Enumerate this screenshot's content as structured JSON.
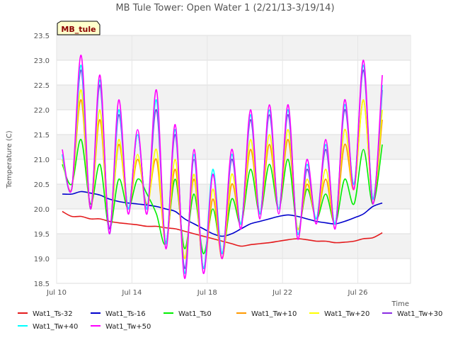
{
  "chart_data": {
    "type": "line",
    "title": "MB Tule Tower: Open Water 1 (2/21/13-3/19/14)",
    "xlabel": "Time",
    "ylabel": "Temperature (C)",
    "site_label": "MB_tule",
    "ylim": [
      18.5,
      23.5
    ],
    "xlim": [
      10.0,
      28.8
    ],
    "y_ticks": [
      "18.5",
      "19.0",
      "19.5",
      "20.0",
      "20.5",
      "21.0",
      "21.5",
      "22.0",
      "22.5",
      "23.0",
      "23.5"
    ],
    "x_ticks": [
      {
        "value": 10,
        "label": "Jul 10"
      },
      {
        "value": 14,
        "label": "Jul 14"
      },
      {
        "value": 18,
        "label": "Jul 18"
      },
      {
        "value": 22,
        "label": "Jul 22"
      },
      {
        "value": 26,
        "label": "Jul 26"
      }
    ],
    "grid": true,
    "legend_position": "bottom",
    "x": [
      10.3,
      10.8,
      11.3,
      11.8,
      12.3,
      12.8,
      13.3,
      13.8,
      14.3,
      14.8,
      15.3,
      15.8,
      16.3,
      16.8,
      17.3,
      17.8,
      18.3,
      18.8,
      19.3,
      19.8,
      20.3,
      20.8,
      21.3,
      21.8,
      22.3,
      22.8,
      23.3,
      23.8,
      24.3,
      24.8,
      25.3,
      25.8,
      26.3,
      26.8,
      27.3
    ],
    "series": [
      {
        "name": "Wat1_Ts-32",
        "color": "#e41a1c",
        "values": [
          19.95,
          19.85,
          19.85,
          19.8,
          19.8,
          19.75,
          19.72,
          19.7,
          19.68,
          19.65,
          19.65,
          19.62,
          19.6,
          19.55,
          19.5,
          19.45,
          19.4,
          19.35,
          19.3,
          19.25,
          19.28,
          19.3,
          19.32,
          19.35,
          19.38,
          19.4,
          19.38,
          19.35,
          19.35,
          19.32,
          19.33,
          19.35,
          19.4,
          19.42,
          19.52
        ]
      },
      {
        "name": "Wat1_Ts-16",
        "color": "#0000cc",
        "values": [
          20.3,
          20.3,
          20.35,
          20.32,
          20.28,
          20.2,
          20.15,
          20.12,
          20.1,
          20.08,
          20.05,
          20.0,
          19.95,
          19.8,
          19.7,
          19.6,
          19.5,
          19.45,
          19.5,
          19.6,
          19.7,
          19.75,
          19.8,
          19.85,
          19.88,
          19.85,
          19.8,
          19.75,
          19.72,
          19.7,
          19.75,
          19.82,
          19.9,
          20.05,
          20.12
        ]
      },
      {
        "name": "Wat1_Ts0",
        "color": "#00ee00",
        "values": [
          20.9,
          20.5,
          21.4,
          20.1,
          20.9,
          19.6,
          20.6,
          20.0,
          20.6,
          20.3,
          19.9,
          19.3,
          20.6,
          19.2,
          20.3,
          19.1,
          20.0,
          19.1,
          20.2,
          19.7,
          20.8,
          19.9,
          20.9,
          20.0,
          21.0,
          19.6,
          20.4,
          19.8,
          20.3,
          19.7,
          20.6,
          20.1,
          21.2,
          20.1,
          21.3
        ]
      },
      {
        "name": "Wat1_Tw+10",
        "color": "#ff9900",
        "values": [
          21.0,
          20.4,
          22.2,
          20.0,
          21.8,
          19.6,
          21.3,
          20.0,
          21.0,
          20.1,
          21.0,
          19.3,
          20.8,
          19.0,
          20.6,
          18.8,
          20.2,
          19.0,
          20.5,
          19.7,
          21.2,
          19.9,
          21.3,
          20.0,
          21.4,
          19.6,
          20.5,
          19.8,
          20.6,
          19.7,
          21.3,
          20.4,
          22.2,
          20.2,
          21.8
        ]
      },
      {
        "name": "Wat1_Tw+20",
        "color": "#ffff00",
        "values": [
          21.0,
          20.4,
          22.4,
          20.0,
          22.0,
          19.6,
          21.4,
          20.0,
          21.1,
          20.0,
          21.2,
          19.3,
          21.0,
          19.0,
          20.7,
          18.8,
          20.4,
          19.0,
          20.7,
          19.7,
          21.4,
          19.9,
          21.5,
          20.0,
          21.6,
          19.6,
          20.6,
          19.8,
          20.8,
          19.7,
          21.6,
          20.4,
          22.2,
          20.2,
          22.0
        ]
      },
      {
        "name": "Wat1_Tw+30",
        "color": "#8a2be2",
        "values": [
          21.1,
          20.4,
          22.8,
          20.0,
          22.5,
          19.6,
          21.9,
          20.0,
          21.5,
          20.0,
          22.0,
          19.3,
          21.5,
          18.8,
          21.0,
          18.8,
          20.7,
          19.1,
          21.0,
          19.7,
          21.8,
          19.9,
          21.9,
          20.0,
          21.9,
          19.5,
          20.8,
          19.8,
          21.2,
          19.7,
          22.0,
          20.5,
          22.8,
          20.2,
          22.4
        ]
      },
      {
        "name": "Wat1_Tw+40",
        "color": "#00ffff",
        "values": [
          21.1,
          20.4,
          22.9,
          20.0,
          22.6,
          19.5,
          22.0,
          20.0,
          21.5,
          20.0,
          22.2,
          19.3,
          21.6,
          18.7,
          21.1,
          18.8,
          20.8,
          19.1,
          21.1,
          19.7,
          21.9,
          19.9,
          22.0,
          20.0,
          22.0,
          19.5,
          20.9,
          19.8,
          21.3,
          19.7,
          22.1,
          20.5,
          22.9,
          20.2,
          22.5
        ]
      },
      {
        "name": "Wat1_Tw+50",
        "color": "#ff00ff",
        "values": [
          21.2,
          20.4,
          23.1,
          20.0,
          22.7,
          19.5,
          22.2,
          19.9,
          21.6,
          19.9,
          22.4,
          19.2,
          21.7,
          18.6,
          21.2,
          18.7,
          20.7,
          19.0,
          21.2,
          19.6,
          22.0,
          19.8,
          22.1,
          19.9,
          22.1,
          19.4,
          21.0,
          19.7,
          21.4,
          19.6,
          22.2,
          20.4,
          23.0,
          20.1,
          22.7
        ]
      }
    ]
  }
}
